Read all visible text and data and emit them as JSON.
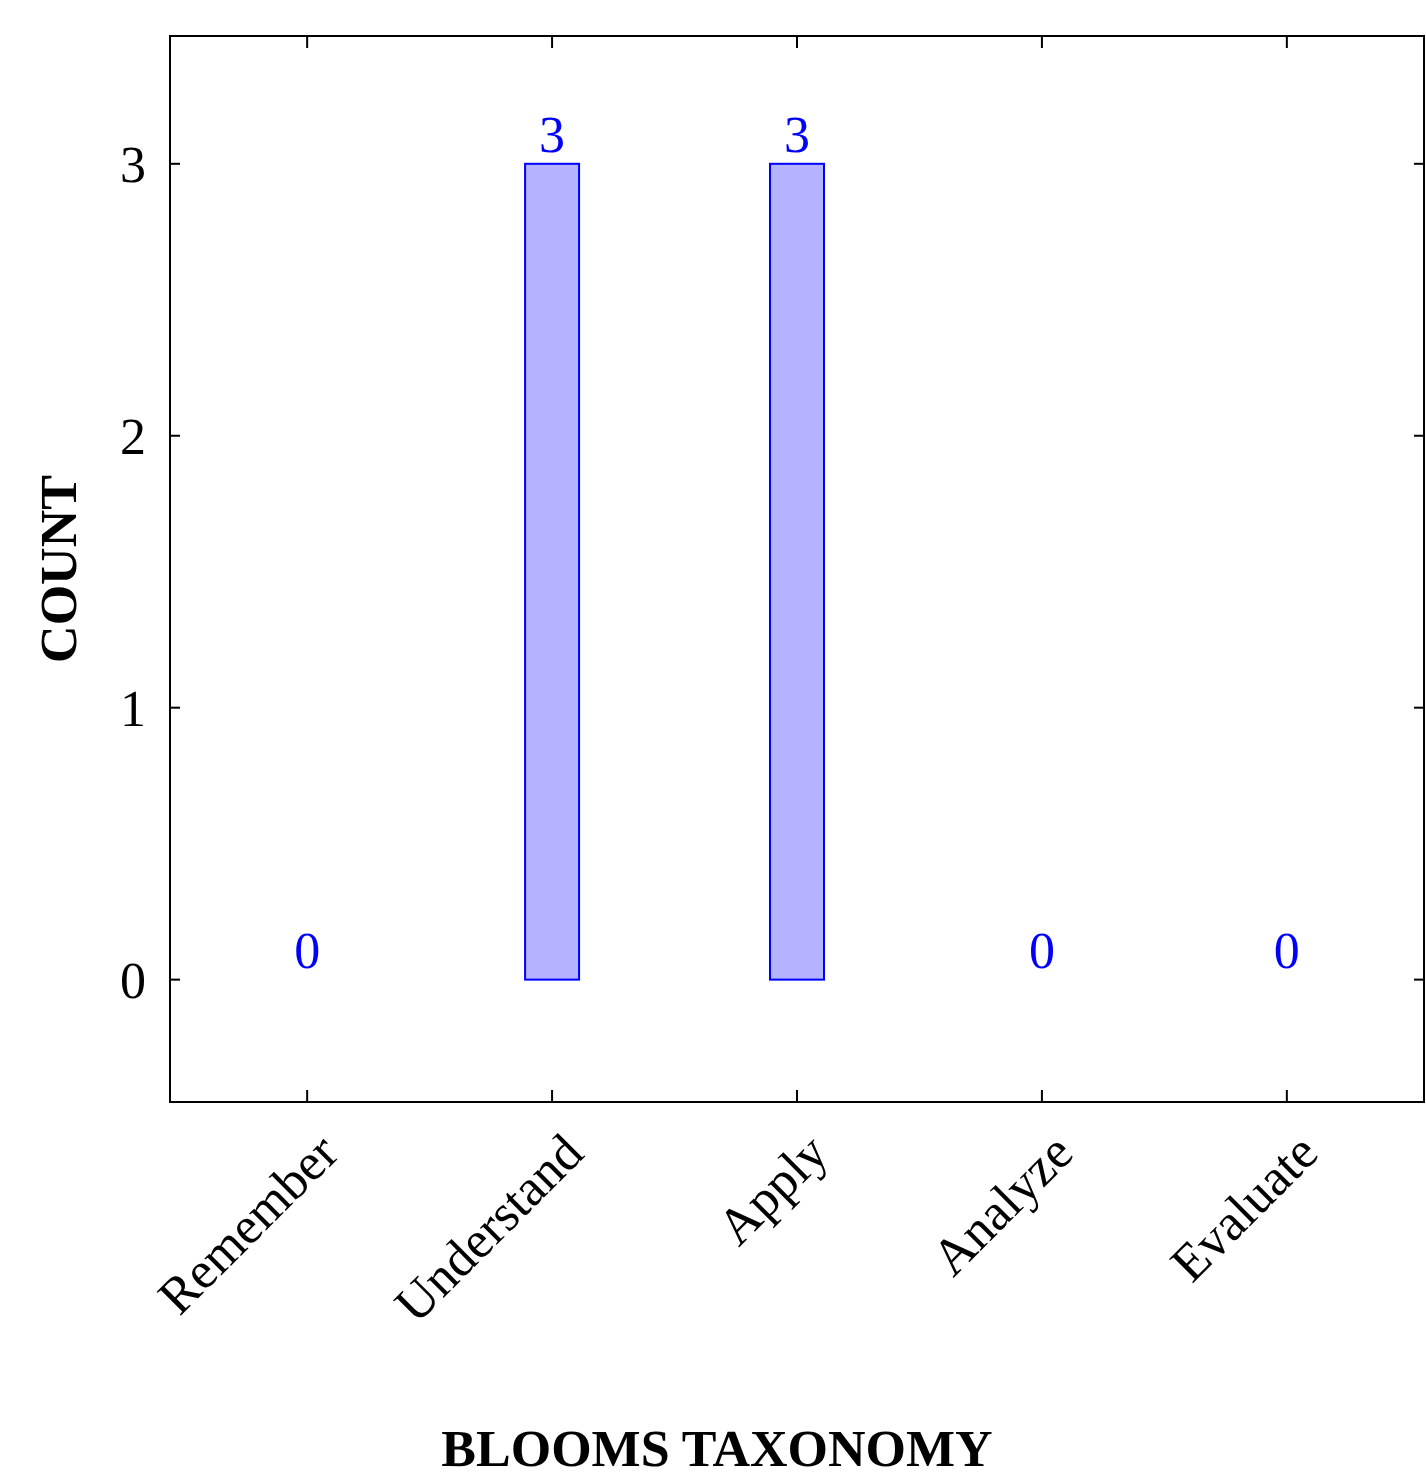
{
  "chart_data": {
    "type": "bar",
    "xlabel": "BLOOMS TAXONOMY",
    "ylabel": "COUNT",
    "categories": [
      "Remember",
      "Understand",
      "Apply",
      "Analyze",
      "Evaluate"
    ],
    "values": [
      0,
      3,
      3,
      0,
      0
    ],
    "color": "#b3b3ff",
    "ylim": [
      -0.45,
      3.47
    ],
    "yticks": [
      0,
      1,
      2,
      3
    ],
    "data_labels": true,
    "grid": false
  }
}
